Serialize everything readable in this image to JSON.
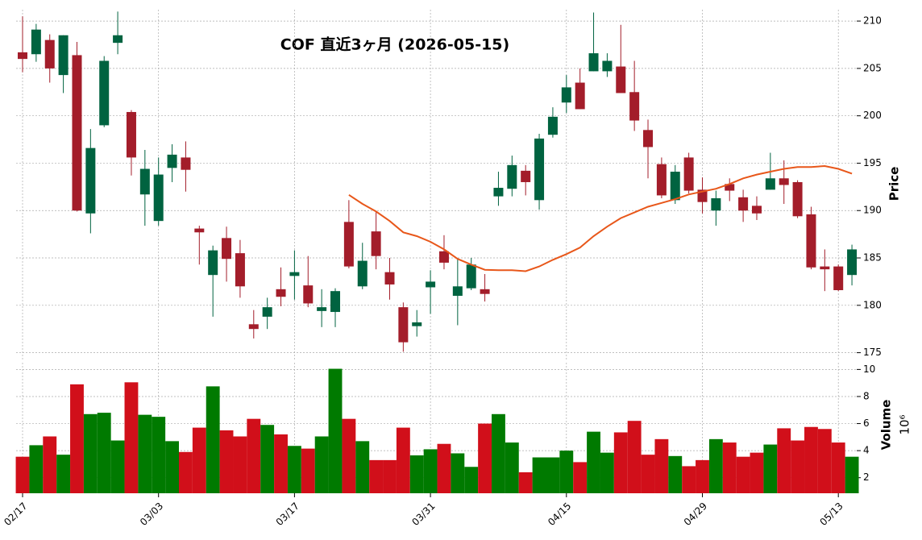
{
  "chart_data": {
    "type": "candlestick",
    "title": "COF  直近3ヶ月  (2026-05-15)",
    "y_label": "Price",
    "volume_label": "Volume",
    "volume_unit": "10⁶",
    "categories": [
      "02/17",
      null,
      null,
      null,
      null,
      null,
      null,
      null,
      null,
      null,
      "03/03",
      null,
      null,
      null,
      null,
      null,
      null,
      null,
      null,
      null,
      "03/17",
      null,
      null,
      null,
      null,
      null,
      null,
      null,
      null,
      null,
      "03/31",
      null,
      null,
      null,
      null,
      null,
      null,
      null,
      null,
      null,
      "04/15",
      null,
      null,
      null,
      null,
      null,
      null,
      null,
      null,
      null,
      "04/29",
      null,
      null,
      null,
      null,
      null,
      null,
      null,
      null,
      null,
      "05/13",
      null
    ],
    "open": [
      206.7,
      206.5,
      208.0,
      204.3,
      206.4,
      189.7,
      199.0,
      207.7,
      200.4,
      191.7,
      188.9,
      194.5,
      195.6,
      188.1,
      183.2,
      187.1,
      185.5,
      178.0,
      178.8,
      181.7,
      183.1,
      182.1,
      179.4,
      179.3,
      188.8,
      182.0,
      187.8,
      183.5,
      179.8,
      177.8,
      181.9,
      185.7,
      181.0,
      181.8,
      181.7,
      191.5,
      192.3,
      194.2,
      191.1,
      198.0,
      201.4,
      203.5,
      204.7,
      204.7,
      205.2,
      202.5,
      198.5,
      194.9,
      191.1,
      195.6,
      192.2,
      190.0,
      192.8,
      191.4,
      190.5,
      192.2,
      193.4,
      193.0,
      189.6,
      184.1,
      184.1,
      183.2
    ],
    "high": [
      210.5,
      209.7,
      208.6,
      208.5,
      207.8,
      198.6,
      206.3,
      211.0,
      200.6,
      196.4,
      195.6,
      197.0,
      197.3,
      188.4,
      186.3,
      188.3,
      186.9,
      179.5,
      180.8,
      184.0,
      185.8,
      185.2,
      181.7,
      181.8,
      191.1,
      186.6,
      189.9,
      185.0,
      180.3,
      179.5,
      183.7,
      187.4,
      185.0,
      185.0,
      183.3,
      194.1,
      195.8,
      194.8,
      198.1,
      200.9,
      204.3,
      205.0,
      210.9,
      206.6,
      209.6,
      205.8,
      199.6,
      195.6,
      194.8,
      196.1,
      193.5,
      192.1,
      193.4,
      192.2,
      191.5,
      196.1,
      195.3,
      193.2,
      190.4,
      185.9,
      184.3,
      186.4
    ],
    "low": [
      204.6,
      205.7,
      203.5,
      202.4,
      189.9,
      187.6,
      198.8,
      206.5,
      193.7,
      188.4,
      188.4,
      193.0,
      192.0,
      184.3,
      178.8,
      182.5,
      180.8,
      176.5,
      177.5,
      179.9,
      180.6,
      179.8,
      177.7,
      177.7,
      183.9,
      181.7,
      183.8,
      180.6,
      175.1,
      176.7,
      179.1,
      183.8,
      177.9,
      181.6,
      180.4,
      190.5,
      191.5,
      191.6,
      190.1,
      197.7,
      200.3,
      200.7,
      204.7,
      204.1,
      202.4,
      198.4,
      193.4,
      191.3,
      190.7,
      191.8,
      189.7,
      188.4,
      191.0,
      188.8,
      189.0,
      192.2,
      190.7,
      189.2,
      183.8,
      181.5,
      181.5,
      182.1
    ],
    "close": [
      206.0,
      209.1,
      205.0,
      208.5,
      190.0,
      196.6,
      205.8,
      208.5,
      195.6,
      194.4,
      193.8,
      195.9,
      194.3,
      187.7,
      185.8,
      184.9,
      182.0,
      177.5,
      179.8,
      180.9,
      183.5,
      180.2,
      179.8,
      181.5,
      184.1,
      184.7,
      185.2,
      182.2,
      176.1,
      178.2,
      182.5,
      184.5,
      182.0,
      184.3,
      181.2,
      192.4,
      194.8,
      193.0,
      197.6,
      199.9,
      203.0,
      200.7,
      206.6,
      205.8,
      202.4,
      199.5,
      196.7,
      191.6,
      194.1,
      192.1,
      190.9,
      191.3,
      192.1,
      190.0,
      189.7,
      193.4,
      192.7,
      189.4,
      184.0,
      183.8,
      181.6,
      185.9
    ],
    "volume": [
      3.55,
      4.4,
      5.05,
      3.7,
      8.9,
      6.7,
      6.8,
      4.75,
      9.05,
      6.65,
      6.5,
      4.7,
      3.9,
      5.7,
      8.75,
      5.5,
      5.05,
      6.35,
      5.9,
      5.2,
      4.35,
      4.15,
      5.05,
      10.05,
      6.35,
      4.7,
      3.3,
      3.3,
      5.7,
      3.65,
      4.1,
      4.5,
      3.8,
      2.8,
      6.0,
      6.7,
      4.6,
      2.4,
      3.5,
      3.5,
      4.0,
      3.15,
      5.4,
      3.85,
      5.35,
      6.2,
      3.7,
      4.85,
      3.6,
      2.85,
      3.3,
      4.85,
      4.6,
      3.55,
      3.85,
      4.45,
      5.65,
      4.75,
      5.75,
      5.6,
      4.6,
      3.55
    ],
    "ma": {
      "color": "#e8571a",
      "values": [
        null,
        null,
        null,
        null,
        null,
        null,
        null,
        null,
        null,
        null,
        null,
        null,
        null,
        null,
        null,
        null,
        null,
        null,
        null,
        null,
        null,
        null,
        null,
        null,
        191.65,
        190.7,
        189.9,
        188.9,
        187.7,
        187.3,
        186.7,
        185.9,
        184.9,
        184.3,
        183.75,
        183.7,
        183.7,
        183.6,
        184.1,
        184.8,
        185.4,
        186.1,
        187.3,
        188.3,
        189.2,
        189.8,
        190.4,
        190.8,
        191.2,
        191.7,
        192.0,
        192.3,
        192.8,
        193.4,
        193.8,
        194.1,
        194.4,
        194.6,
        194.6,
        194.7,
        194.4,
        193.9
      ]
    },
    "up_color": "#006340",
    "down_color": "#a31d2a",
    "volume_up_color": "#007a00",
    "volume_down_color": "#d10f1a",
    "ylim": [
      174.2,
      211.2
    ],
    "yticks": [
      175,
      180,
      185,
      190,
      195,
      200,
      205,
      210
    ],
    "volume_ylim": [
      0.85,
      10.5
    ],
    "volume_yticks": [
      2,
      4,
      6,
      8,
      10
    ],
    "grid": true
  }
}
